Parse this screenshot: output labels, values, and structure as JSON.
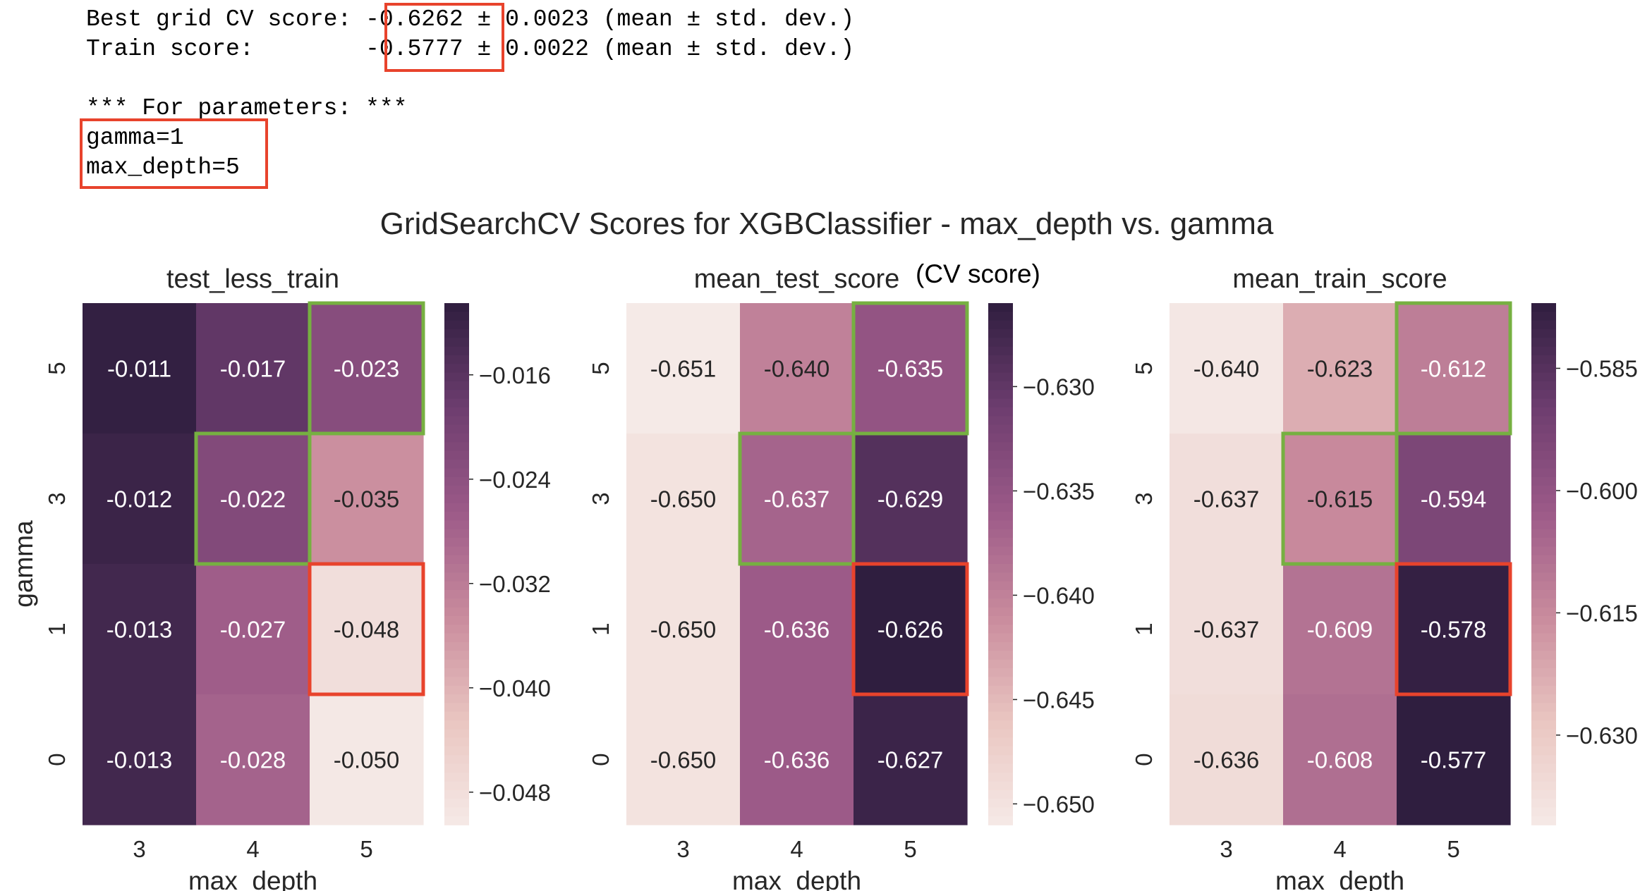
{
  "console": {
    "lines": [
      "Best grid CV score: -0.6262 ± 0.0023 (mean ± std. dev.)",
      "Train score:        -0.5777 ± 0.0022 (mean ± std. dev.)",
      "",
      "*** For parameters: ***",
      "gamma=1",
      "max_depth=5"
    ],
    "highlight_color": "#e8432c"
  },
  "annotation": {
    "text": "(CV score)"
  },
  "chart_data": {
    "type": "heatmap",
    "title": "GridSearchCV Scores for XGBClassifier - max_depth vs. gamma",
    "x_label": "max_depth",
    "y_label": "gamma",
    "x_categories": [
      "3",
      "4",
      "5"
    ],
    "y_categories": [
      "5",
      "3",
      "1",
      "0"
    ],
    "colormap": [
      "#f5eae7",
      "#e9c5c0",
      "#c98b9d",
      "#9c5a88",
      "#6d3d6f",
      "#2f1e3f"
    ],
    "highlight_colors": {
      "best": "#e8432c",
      "alternative": "#76b041"
    },
    "panels": [
      {
        "title": "test_less_train",
        "values": [
          [
            -0.011,
            -0.017,
            -0.023
          ],
          [
            -0.012,
            -0.022,
            -0.035
          ],
          [
            -0.013,
            -0.027,
            -0.048
          ],
          [
            -0.013,
            -0.028,
            -0.05
          ]
        ],
        "labels": [
          [
            "-0.011",
            "-0.017",
            "-0.023"
          ],
          [
            "-0.012",
            "-0.022",
            "-0.035"
          ],
          [
            "-0.013",
            "-0.027",
            "-0.048"
          ],
          [
            "-0.013",
            "-0.028",
            "-0.050"
          ]
        ],
        "vmin": -0.0505,
        "vmax": -0.0105,
        "colorbar_ticks": [
          -0.016,
          -0.024,
          -0.032,
          -0.04,
          -0.048
        ],
        "colorbar_tick_labels": [
          "−0.016",
          "−0.024",
          "−0.032",
          "−0.040",
          "−0.048"
        ],
        "red_box": [
          2,
          2
        ],
        "green_boxes": [
          [
            0,
            2
          ],
          [
            1,
            1
          ]
        ]
      },
      {
        "title": "mean_test_score",
        "values": [
          [
            -0.651,
            -0.64,
            -0.635
          ],
          [
            -0.65,
            -0.637,
            -0.629
          ],
          [
            -0.65,
            -0.636,
            -0.626
          ],
          [
            -0.65,
            -0.636,
            -0.627
          ]
        ],
        "labels": [
          [
            "-0.651",
            "-0.640",
            "-0.635"
          ],
          [
            "-0.650",
            "-0.637",
            "-0.629"
          ],
          [
            "-0.650",
            "-0.636",
            "-0.626"
          ],
          [
            "-0.650",
            "-0.636",
            "-0.627"
          ]
        ],
        "vmin": -0.651,
        "vmax": -0.626,
        "colorbar_ticks": [
          -0.63,
          -0.635,
          -0.64,
          -0.645,
          -0.65
        ],
        "colorbar_tick_labels": [
          "−0.630",
          "−0.635",
          "−0.640",
          "−0.645",
          "−0.650"
        ],
        "red_box": [
          2,
          2
        ],
        "green_boxes": [
          [
            0,
            2
          ],
          [
            1,
            1
          ]
        ]
      },
      {
        "title": "mean_train_score",
        "values": [
          [
            -0.64,
            -0.623,
            -0.612
          ],
          [
            -0.637,
            -0.615,
            -0.594
          ],
          [
            -0.637,
            -0.609,
            -0.578
          ],
          [
            -0.636,
            -0.608,
            -0.577
          ]
        ],
        "labels": [
          [
            "-0.640",
            "-0.623",
            "-0.612"
          ],
          [
            "-0.637",
            "-0.615",
            "-0.594"
          ],
          [
            "-0.637",
            "-0.609",
            "-0.578"
          ],
          [
            "-0.636",
            "-0.608",
            "-0.577"
          ]
        ],
        "vmin": -0.641,
        "vmax": -0.577,
        "colorbar_ticks": [
          -0.585,
          -0.6,
          -0.615,
          -0.63
        ],
        "colorbar_tick_labels": [
          "−0.585",
          "−0.600",
          "−0.615",
          "−0.630"
        ],
        "red_box": [
          2,
          2
        ],
        "green_boxes": [
          [
            0,
            2
          ],
          [
            1,
            1
          ]
        ]
      }
    ]
  }
}
